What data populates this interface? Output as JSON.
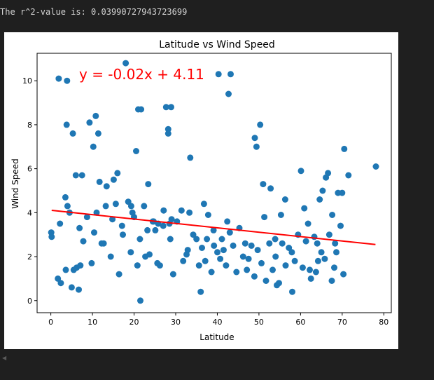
{
  "output": {
    "text": "The r^2-value is: 0.03990727943723699"
  },
  "colors": {
    "background": "#1f1f1f",
    "figure": "#ffffff",
    "points": "#1f77b4",
    "regression": "#ff0000",
    "text": "#d4d4d4"
  },
  "chart_data": {
    "type": "scatter",
    "title": "Latitude vs Wind Speed",
    "xlabel": "Latitude",
    "ylabel": "Wind Speed",
    "xlim": [
      -3.3,
      81.8
    ],
    "ylim": [
      -0.55,
      11.25
    ],
    "xticks": [
      0,
      10,
      20,
      30,
      40,
      50,
      60,
      70,
      80
    ],
    "yticks": [
      0,
      2,
      4,
      6,
      8,
      10
    ],
    "grid": false,
    "regression": {
      "slope": -0.02,
      "intercept": 4.11,
      "x_range": [
        0.2,
        78.0
      ],
      "equation": "y = -0.02x + 4.11"
    },
    "series": [
      {
        "x": [
          1.9,
          3.9,
          0.1,
          0.2,
          1.7,
          2.4,
          2.2,
          3.5,
          3.6,
          3.8,
          4.0,
          4.5,
          5.3,
          6.0,
          6.2,
          6.7,
          7.5,
          8.7,
          9.3,
          10.2,
          10.8,
          11.4,
          13.2,
          15.1,
          16.0,
          17.3,
          18.0,
          19.3,
          20.0,
          20.5,
          21.0,
          21.5,
          21.7,
          22.4,
          23.7,
          24.7,
          25.1,
          25.8,
          27.1,
          27.7,
          28.2,
          28.2,
          28.9,
          29.0,
          31.4,
          33.5,
          36.0,
          39.1,
          40.3,
          41.1,
          42.7,
          43.2,
          46.2,
          49.0,
          49.4,
          50.3,
          51.0,
          51.3,
          52.8,
          54.3,
          56.3,
          58.0,
          60.1,
          60.9,
          61.8,
          62.2,
          64.0,
          64.6,
          65.3,
          66.1,
          66.6,
          67.6,
          68.6,
          69.0,
          70.0,
          70.5,
          71.5,
          78.1,
          5.5,
          6.9,
          7.8,
          9.8,
          11.0,
          11.7,
          12.2,
          13.4,
          14.4,
          15.6,
          16.4,
          17.1,
          18.6,
          19.2,
          20.8,
          21.4,
          22.7,
          23.4,
          24.5,
          26.2,
          27.0,
          28.7,
          29.4,
          30.3,
          31.8,
          32.6,
          33.3,
          34.2,
          35.0,
          35.6,
          36.3,
          37.1,
          37.8,
          38.6,
          39.2,
          40.0,
          40.7,
          41.5,
          42.1,
          43.0,
          43.8,
          44.6,
          45.3,
          46.7,
          47.5,
          48.2,
          48.9,
          49.7,
          50.6,
          51.7,
          52.5,
          53.3,
          54.0,
          54.8,
          55.6,
          56.4,
          57.2,
          58.6,
          59.4,
          60.5,
          61.3,
          62.5,
          63.3,
          64.2,
          65.0,
          65.8,
          66.9,
          67.5,
          68.3,
          69.6,
          70.3,
          55.3,
          5.0,
          7.1,
          10.4,
          12.7,
          14.8,
          19.6,
          23.2,
          25.6,
          28.5,
          32.9,
          37.5,
          42.4,
          47.1,
          53.9,
          57.9,
          63.7,
          68.1,
          36.8
        ],
        "y": [
          10.1,
          10.0,
          3.1,
          2.9,
          1.0,
          0.8,
          3.5,
          4.7,
          1.4,
          8.0,
          4.3,
          4.0,
          7.6,
          5.7,
          1.5,
          0.5,
          5.7,
          3.8,
          8.1,
          7.0,
          8.4,
          7.6,
          4.3,
          5.5,
          5.8,
          3.0,
          10.8,
          4.3,
          3.8,
          6.8,
          8.7,
          0.0,
          8.7,
          4.3,
          2.1,
          3.6,
          3.2,
          3.5,
          4.1,
          8.8,
          7.8,
          7.6,
          8.8,
          3.7,
          4.1,
          6.5,
          0.4,
          3.2,
          10.3,
          2.8,
          9.4,
          10.3,
          2.0,
          7.4,
          7.0,
          8.0,
          5.3,
          3.8,
          5.1,
          0.7,
          4.6,
          0.4,
          5.9,
          4.2,
          3.5,
          1.4,
          2.6,
          4.6,
          5.0,
          5.6,
          5.8,
          3.9,
          2.2,
          4.9,
          4.9,
          6.9,
          5.7,
          6.1,
          1.4,
          3.3,
          2.7,
          1.7,
          4.0,
          5.4,
          2.6,
          5.2,
          2.0,
          4.4,
          1.2,
          3.4,
          4.5,
          2.2,
          1.6,
          2.8,
          2.0,
          5.3,
          3.6,
          1.6,
          3.4,
          2.8,
          1.2,
          3.6,
          1.8,
          2.1,
          4.0,
          3.0,
          2.8,
          1.6,
          2.4,
          1.8,
          3.9,
          1.3,
          2.5,
          2.2,
          1.9,
          2.3,
          1.6,
          3.1,
          2.5,
          1.3,
          3.3,
          2.6,
          1.9,
          2.5,
          1.1,
          2.3,
          1.7,
          0.9,
          2.6,
          1.4,
          2.0,
          0.8,
          2.6,
          1.6,
          2.4,
          1.8,
          3.0,
          1.5,
          2.7,
          1.0,
          2.9,
          1.8,
          2.2,
          1.9,
          3.0,
          0.9,
          2.6,
          3.4,
          1.2,
          3.9,
          0.6,
          1.6,
          3.1,
          2.6,
          3.7,
          4.0,
          3.2,
          1.7,
          3.5,
          2.3,
          2.8,
          3.6,
          1.4,
          2.8,
          2.2,
          1.3,
          1.5,
          4.4
        ]
      }
    ]
  }
}
